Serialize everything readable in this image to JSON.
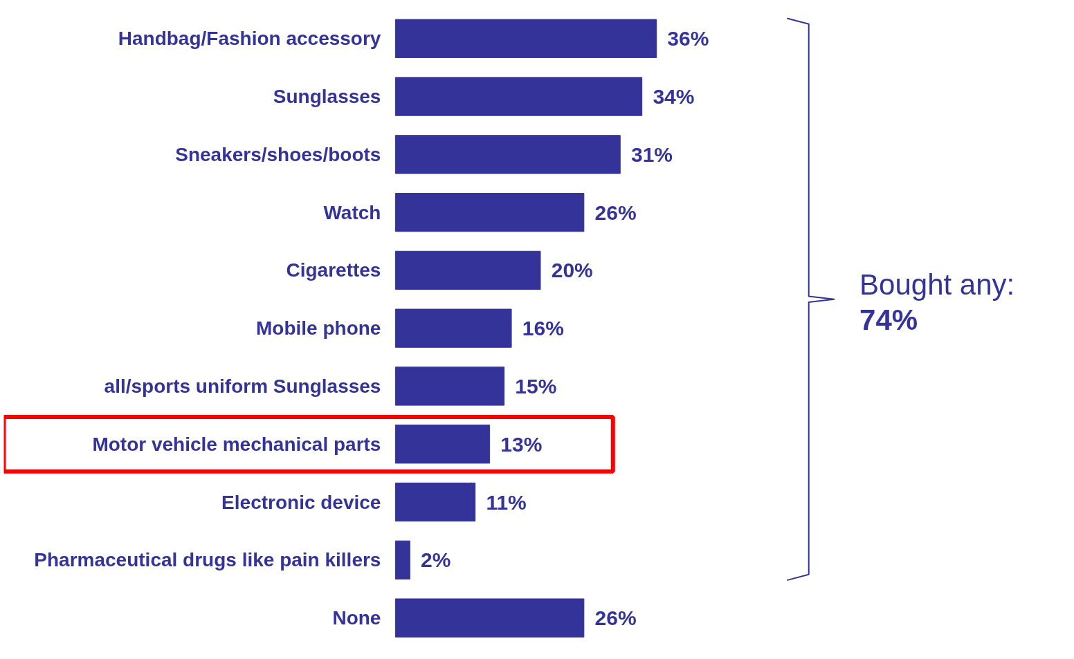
{
  "chart_data": {
    "type": "bar",
    "orientation": "horizontal",
    "categories": [
      "Handbag/Fashion accessory",
      "Sunglasses",
      "Sneakers/shoes/boots",
      "Watch",
      "Cigarettes",
      "Mobile phone",
      "all/sports uniform Sunglasses",
      "Motor vehicle mechanical parts",
      "Electronic device",
      "Pharmaceutical drugs like pain killers",
      "None"
    ],
    "values": [
      36,
      34,
      31,
      26,
      20,
      16,
      15,
      13,
      11,
      2,
      26
    ],
    "color": "#333399",
    "data_labels": true,
    "value_labels": [
      "36%",
      "34%",
      "31%",
      "26%",
      "20%",
      "16%",
      "15%",
      "13%",
      "11%",
      "2%",
      "26%"
    ],
    "annotations": [
      "Bought any:\n74%"
    ]
  }
}
